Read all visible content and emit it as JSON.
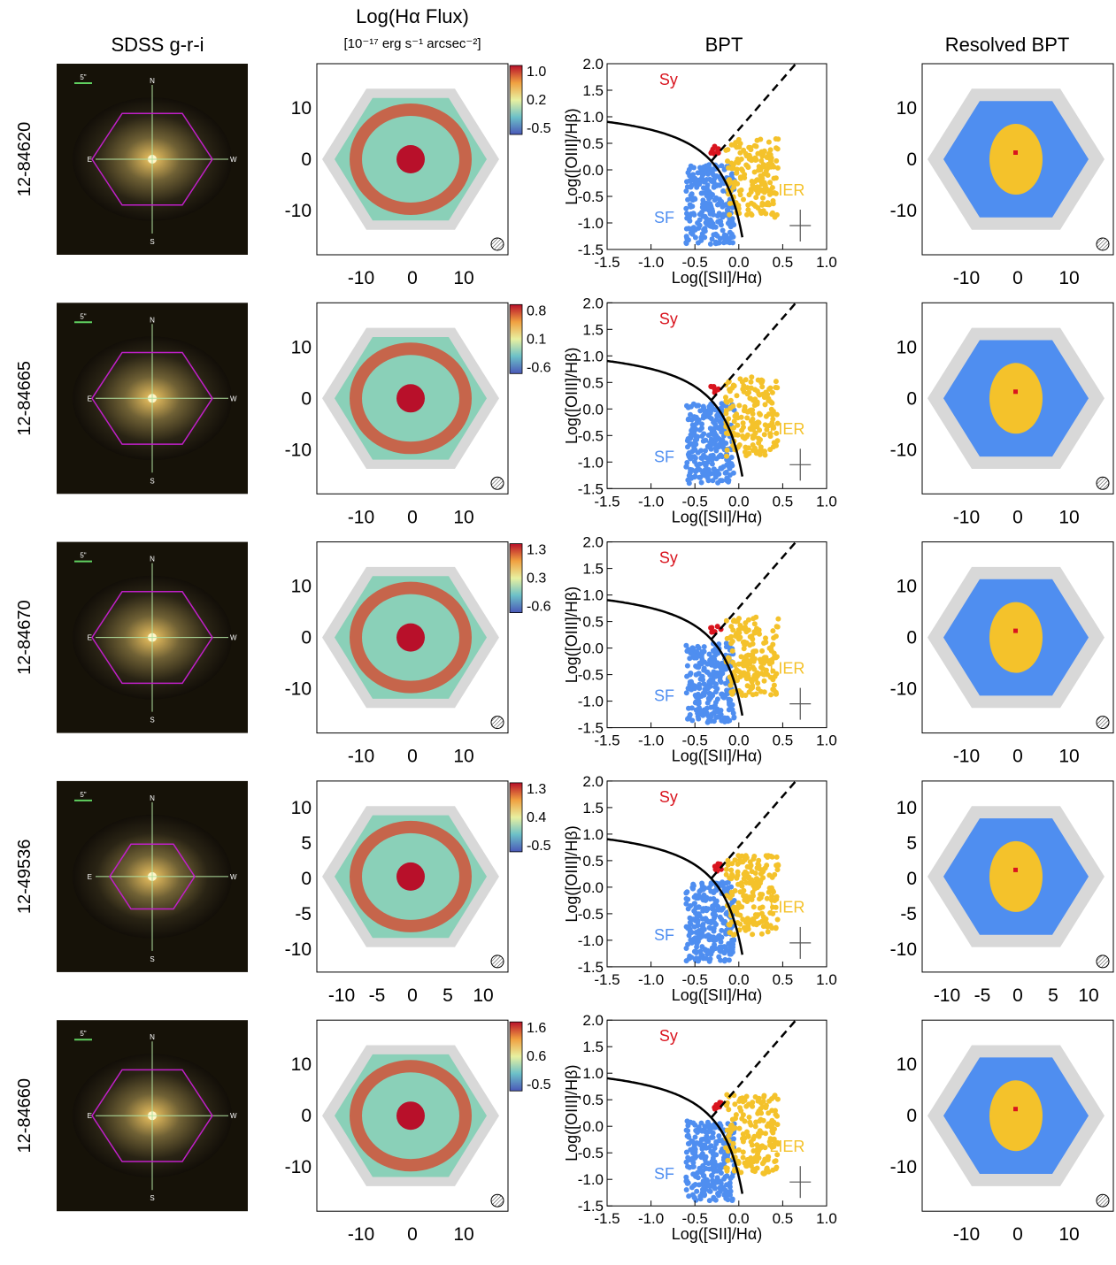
{
  "headers": {
    "sdss": "SDSS g-r-i",
    "flux_title": "Log(Hα Flux)",
    "flux_unit": "[10⁻¹⁷ erg s⁻¹ arcsec⁻²]",
    "bpt": "BPT",
    "resolved": "Resolved BPT"
  },
  "sdss_image": {
    "scale_label": "5\"",
    "compass": [
      "N",
      "S",
      "E",
      "W"
    ]
  },
  "bpt_axes": {
    "xlabel": "Log([SII]/Hα)",
    "ylabel": "Log([OIII]/Hβ)",
    "xticks": [
      "-1.5",
      "-1.0",
      "-0.5",
      "0.0",
      "0.5",
      "1.0"
    ],
    "yticks": [
      "2.0",
      "1.5",
      "1.0",
      "0.5",
      "0.0",
      "-0.5",
      "-1.0",
      "-1.5"
    ],
    "xlim": [
      -1.5,
      1.0
    ],
    "ylim": [
      -1.5,
      2.0
    ],
    "region_labels": {
      "sy": "Sy",
      "lier": "LIER",
      "sf": "SF"
    }
  },
  "colors": {
    "sf": "#4f8ef0",
    "lier": "#f4c22b",
    "sy": "#d9141e",
    "mask": "#d8d8d8"
  },
  "galaxies": [
    {
      "id": "12-84620",
      "colorbar_ticks": [
        "1.0",
        "0.2",
        "-0.5"
      ],
      "map_ticks": [
        "10",
        "0",
        "-10"
      ],
      "map_xticks": [
        "-10",
        "0",
        "10"
      ]
    },
    {
      "id": "12-84665",
      "colorbar_ticks": [
        "0.8",
        "0.1",
        "-0.6"
      ],
      "map_ticks": [
        "10",
        "0",
        "-10"
      ],
      "map_xticks": [
        "-10",
        "0",
        "10"
      ]
    },
    {
      "id": "12-84670",
      "colorbar_ticks": [
        "1.3",
        "0.3",
        "-0.6"
      ],
      "map_ticks": [
        "10",
        "0",
        "-10"
      ],
      "map_xticks": [
        "-10",
        "0",
        "10"
      ]
    },
    {
      "id": "12-49536",
      "colorbar_ticks": [
        "1.3",
        "0.4",
        "-0.5"
      ],
      "map_ticks": [
        "10",
        "5",
        "0",
        "-5",
        "-10"
      ],
      "map_xticks": [
        "-10",
        "-5",
        "0",
        "5",
        "10"
      ]
    },
    {
      "id": "12-84660",
      "colorbar_ticks": [
        "1.6",
        "0.6",
        "-0.5"
      ],
      "map_ticks": [
        "10",
        "0",
        "-10"
      ],
      "map_xticks": [
        "-10",
        "0",
        "10"
      ]
    }
  ]
}
